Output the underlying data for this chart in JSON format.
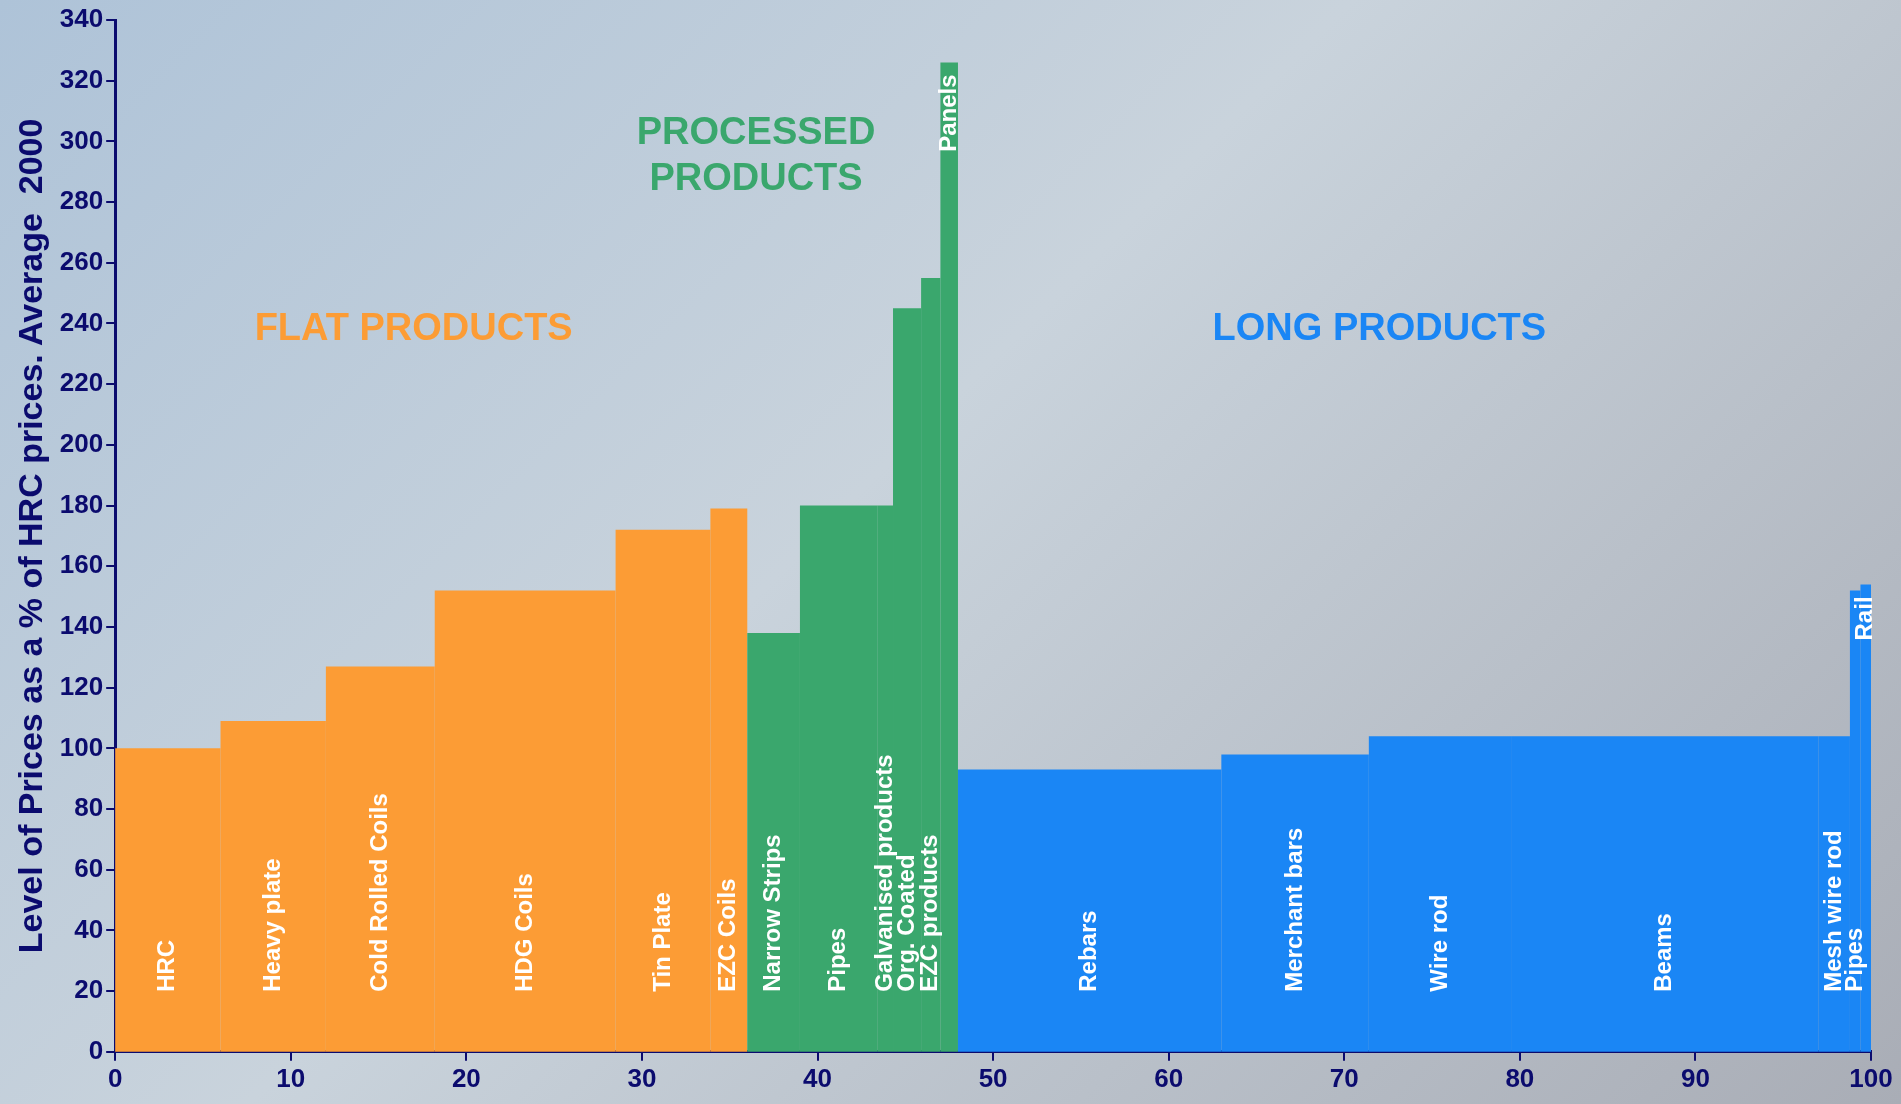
{
  "chart_data": {
    "type": "histogram",
    "ylabel": "Level of Prices as a % of HRC prices. Average  2000",
    "xlim": [
      0,
      100
    ],
    "xticks": [
      0,
      10,
      20,
      30,
      40,
      50,
      60,
      70,
      80,
      90,
      100
    ],
    "ylim": [
      0,
      340
    ],
    "yticks": [
      0,
      20,
      40,
      60,
      80,
      100,
      120,
      140,
      160,
      180,
      200,
      220,
      240,
      260,
      280,
      300,
      320,
      340
    ],
    "bins": [
      0,
      6,
      12,
      18.2,
      28.5,
      33.9,
      36,
      39,
      43.4,
      44.3,
      45.9,
      47,
      48,
      63,
      71.4,
      79.5,
      97,
      98.8,
      99.4,
      100
    ],
    "series": [
      {
        "name": "FLAT PRODUCTS",
        "color": "#fc9c35",
        "values": [
          100,
          109,
          127,
          152,
          172,
          179,
          null,
          null,
          null,
          null,
          null,
          null,
          null,
          null,
          null,
          null,
          null,
          null,
          null
        ]
      },
      {
        "name": "PROCESSED PRODUCTS",
        "color": "#3aa76d",
        "values": [
          null,
          null,
          null,
          null,
          null,
          null,
          138,
          180,
          180,
          245,
          255,
          326,
          null,
          null,
          null,
          null,
          null,
          null,
          null
        ]
      },
      {
        "name": "LONG PRODUCTS",
        "color": "#1a86f5",
        "values": [
          null,
          null,
          null,
          null,
          null,
          null,
          null,
          null,
          null,
          null,
          null,
          null,
          93,
          98,
          104,
          104,
          104,
          152,
          154
        ]
      }
    ],
    "annotations": [
      "HRC",
      "Heavy plate",
      "Cold Rolled Coils",
      "HDG Coils",
      "Tin Plate",
      "EZC Coils",
      "Narrow Strips",
      "Pipes",
      "Galvanised products",
      "Org. Coated",
      "EZC products",
      "Panels",
      "Rebars",
      "Merchant bars",
      "Wire rod",
      "Beams",
      "Mesh wire rod",
      "Pipes",
      "Rail"
    ]
  }
}
